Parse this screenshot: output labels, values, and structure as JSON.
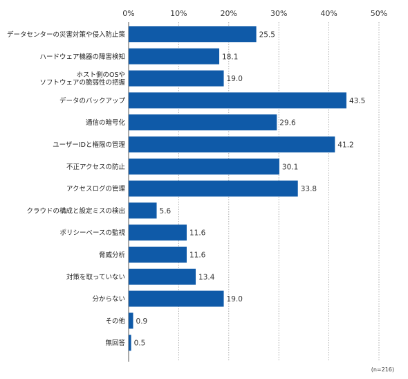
{
  "chart_data": {
    "type": "bar",
    "orientation": "horizontal",
    "bar_color": "#0f5aa8",
    "grid_color": "#9a9a9a",
    "xlim": [
      0,
      50
    ],
    "tick_values": [
      0,
      10,
      20,
      30,
      40,
      50
    ],
    "tick_labels": [
      "0%",
      "10%",
      "20%",
      "30%",
      "40%",
      "50%"
    ],
    "grid": "dotted vertical",
    "categories": [
      "データセンターの災害対策や侵入防止策",
      "ハードウェア機器の障害検知",
      "ホスト側のOSや\nソフトウェアの脆弱性の把握",
      "データのバックアップ",
      "通信の暗号化",
      "ユーザーIDと権限の管理",
      "不正アクセスの防止",
      "アクセスログの管理",
      "クラウドの構成と設定ミスの検出",
      "ポリシーベースの監視",
      "脅威分析",
      "対策を取っていない",
      "分からない",
      "その他",
      "無回答"
    ],
    "values": [
      25.5,
      18.1,
      19.0,
      43.5,
      29.6,
      41.2,
      30.1,
      33.8,
      5.6,
      11.6,
      11.6,
      13.4,
      19.0,
      0.9,
      0.5
    ],
    "value_labels": [
      "25.5",
      "18.1",
      "19.0",
      "43.5",
      "29.6",
      "41.2",
      "30.1",
      "33.8",
      "5.6",
      "11.6",
      "11.6",
      "13.4",
      "19.0",
      "0.9",
      "0.5"
    ],
    "note": "(n=216)"
  }
}
